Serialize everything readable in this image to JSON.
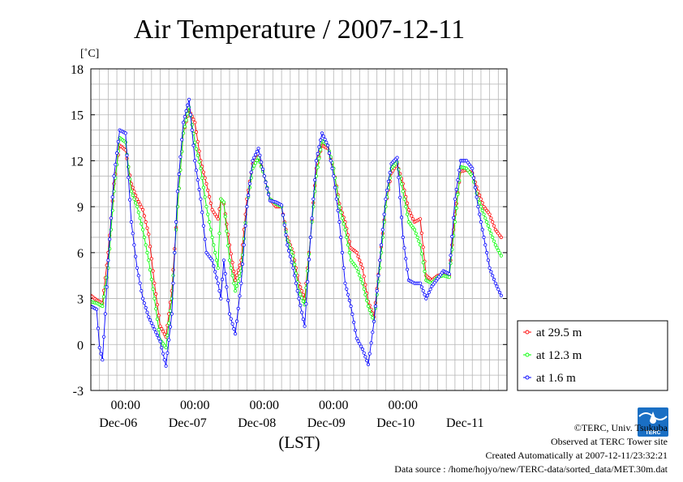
{
  "chart_data": {
    "type": "line",
    "title": "Air Temperature / 2007-12-11",
    "ylabel": "[˚C]",
    "xlabel": "(LST)",
    "ylim": [
      -3,
      18
    ],
    "yticks": [
      -3,
      0,
      3,
      6,
      9,
      12,
      15,
      18
    ],
    "xlim": [
      0,
      144
    ],
    "x_unit": "hours from 2007-12-05 12:00 LST",
    "x_time_ticks": [
      {
        "x": 12,
        "label": "00:00"
      },
      {
        "x": 36,
        "label": "00:00"
      },
      {
        "x": 60,
        "label": "00:00"
      },
      {
        "x": 84,
        "label": "00:00"
      },
      {
        "x": 108,
        "label": "00:00"
      }
    ],
    "x_date_labels": [
      {
        "x": 12,
        "label": "Dec-06"
      },
      {
        "x": 36,
        "label": "Dec-07"
      },
      {
        "x": 60,
        "label": "Dec-08"
      },
      {
        "x": 84,
        "label": "Dec-09"
      },
      {
        "x": 108,
        "label": "Dec-10"
      },
      {
        "x": 132,
        "label": "Dec-11"
      }
    ],
    "grid": true,
    "legend_position": "right",
    "series": [
      {
        "name": "at 29.5 m",
        "color": "#ff0000",
        "points": [
          [
            0,
            3.2
          ],
          [
            2,
            2.9
          ],
          [
            4,
            2.7
          ],
          [
            6,
            6.0
          ],
          [
            8,
            10.5
          ],
          [
            10,
            13.0
          ],
          [
            12,
            12.7
          ],
          [
            14,
            10.5
          ],
          [
            16,
            9.5
          ],
          [
            18,
            8.8
          ],
          [
            20,
            7.2
          ],
          [
            22,
            4.0
          ],
          [
            24,
            1.2
          ],
          [
            26,
            0.5
          ],
          [
            28,
            3.5
          ],
          [
            30,
            9.0
          ],
          [
            32,
            13.8
          ],
          [
            34,
            15.3
          ],
          [
            36,
            14.5
          ],
          [
            38,
            12.0
          ],
          [
            40,
            10.5
          ],
          [
            42,
            8.8
          ],
          [
            44,
            8.2
          ],
          [
            45,
            9.5
          ],
          [
            46,
            9.2
          ],
          [
            48,
            6.5
          ],
          [
            50,
            4.2
          ],
          [
            52,
            5.5
          ],
          [
            54,
            9.5
          ],
          [
            56,
            11.8
          ],
          [
            58,
            12.3
          ],
          [
            60,
            11.0
          ],
          [
            62,
            9.5
          ],
          [
            64,
            9.0
          ],
          [
            66,
            9.0
          ],
          [
            68,
            7.0
          ],
          [
            70,
            6.0
          ],
          [
            72,
            4.0
          ],
          [
            74,
            3.0
          ],
          [
            76,
            7.0
          ],
          [
            78,
            11.5
          ],
          [
            80,
            13.0
          ],
          [
            82,
            12.8
          ],
          [
            84,
            11.5
          ],
          [
            86,
            9.2
          ],
          [
            88,
            8.0
          ],
          [
            90,
            6.3
          ],
          [
            92,
            6.0
          ],
          [
            94,
            5.0
          ],
          [
            96,
            2.8
          ],
          [
            98,
            1.8
          ],
          [
            100,
            5.5
          ],
          [
            102,
            9.0
          ],
          [
            104,
            11.2
          ],
          [
            106,
            11.8
          ],
          [
            108,
            10.5
          ],
          [
            110,
            8.8
          ],
          [
            112,
            8.0
          ],
          [
            114,
            8.2
          ],
          [
            116,
            4.5
          ],
          [
            118,
            4.2
          ],
          [
            120,
            4.5
          ],
          [
            122,
            4.6
          ],
          [
            124,
            4.5
          ],
          [
            126,
            8.5
          ],
          [
            128,
            11.3
          ],
          [
            130,
            11.4
          ],
          [
            132,
            11.2
          ],
          [
            134,
            10.0
          ],
          [
            136,
            9.0
          ],
          [
            138,
            8.5
          ],
          [
            140,
            7.5
          ],
          [
            142,
            7.0
          ]
        ]
      },
      {
        "name": "at 12.3 m",
        "color": "#00ff00",
        "points": [
          [
            0,
            2.8
          ],
          [
            2,
            2.7
          ],
          [
            4,
            2.5
          ],
          [
            6,
            5.0
          ],
          [
            8,
            10.0
          ],
          [
            10,
            13.5
          ],
          [
            12,
            13.2
          ],
          [
            14,
            10.0
          ],
          [
            16,
            9.0
          ],
          [
            18,
            7.5
          ],
          [
            20,
            5.5
          ],
          [
            22,
            3.0
          ],
          [
            24,
            0.3
          ],
          [
            26,
            -0.2
          ],
          [
            28,
            3.0
          ],
          [
            30,
            9.0
          ],
          [
            32,
            13.8
          ],
          [
            34,
            15.5
          ],
          [
            36,
            13.2
          ],
          [
            38,
            11.5
          ],
          [
            40,
            9.0
          ],
          [
            42,
            7.0
          ],
          [
            44,
            5.0
          ],
          [
            45,
            9.5
          ],
          [
            46,
            9.3
          ],
          [
            48,
            5.5
          ],
          [
            50,
            3.5
          ],
          [
            52,
            4.8
          ],
          [
            54,
            9.0
          ],
          [
            56,
            11.5
          ],
          [
            58,
            12.2
          ],
          [
            60,
            11.0
          ],
          [
            62,
            9.5
          ],
          [
            64,
            9.2
          ],
          [
            66,
            9.0
          ],
          [
            68,
            6.8
          ],
          [
            70,
            5.8
          ],
          [
            72,
            3.5
          ],
          [
            74,
            2.6
          ],
          [
            76,
            7.0
          ],
          [
            78,
            11.0
          ],
          [
            80,
            13.3
          ],
          [
            82,
            13.0
          ],
          [
            84,
            11.5
          ],
          [
            86,
            9.0
          ],
          [
            88,
            7.5
          ],
          [
            90,
            5.5
          ],
          [
            92,
            5.0
          ],
          [
            94,
            4.0
          ],
          [
            96,
            2.5
          ],
          [
            98,
            1.5
          ],
          [
            100,
            5.0
          ],
          [
            102,
            9.0
          ],
          [
            104,
            11.5
          ],
          [
            106,
            11.9
          ],
          [
            108,
            10.0
          ],
          [
            110,
            8.0
          ],
          [
            112,
            7.5
          ],
          [
            114,
            6.5
          ],
          [
            116,
            4.2
          ],
          [
            118,
            4.0
          ],
          [
            120,
            4.4
          ],
          [
            122,
            4.5
          ],
          [
            124,
            4.4
          ],
          [
            126,
            8.0
          ],
          [
            128,
            11.6
          ],
          [
            130,
            11.5
          ],
          [
            132,
            11.0
          ],
          [
            134,
            9.5
          ],
          [
            136,
            8.5
          ],
          [
            138,
            7.5
          ],
          [
            140,
            6.5
          ],
          [
            142,
            5.8
          ]
        ]
      },
      {
        "name": "at 1.6 m",
        "color": "#0000ff",
        "points": [
          [
            0,
            2.5
          ],
          [
            2,
            2.3
          ],
          [
            3,
            -0.2
          ],
          [
            4,
            -1.0
          ],
          [
            5,
            2.0
          ],
          [
            6,
            5.5
          ],
          [
            8,
            11.0
          ],
          [
            10,
            14.0
          ],
          [
            12,
            13.8
          ],
          [
            14,
            8.0
          ],
          [
            16,
            5.0
          ],
          [
            18,
            3.0
          ],
          [
            20,
            1.8
          ],
          [
            22,
            1.0
          ],
          [
            24,
            0.2
          ],
          [
            26,
            -1.4
          ],
          [
            28,
            2.0
          ],
          [
            30,
            10.0
          ],
          [
            32,
            14.5
          ],
          [
            34,
            16.0
          ],
          [
            36,
            12.0
          ],
          [
            38,
            9.5
          ],
          [
            40,
            6.0
          ],
          [
            42,
            5.5
          ],
          [
            44,
            4.0
          ],
          [
            45,
            3.0
          ],
          [
            46,
            5.5
          ],
          [
            48,
            2.0
          ],
          [
            50,
            0.7
          ],
          [
            52,
            4.0
          ],
          [
            54,
            9.0
          ],
          [
            56,
            12.0
          ],
          [
            58,
            12.8
          ],
          [
            60,
            11.0
          ],
          [
            62,
            9.4
          ],
          [
            64,
            9.3
          ],
          [
            66,
            9.1
          ],
          [
            68,
            6.5
          ],
          [
            70,
            5.0
          ],
          [
            72,
            3.0
          ],
          [
            74,
            1.2
          ],
          [
            76,
            7.0
          ],
          [
            78,
            12.0
          ],
          [
            80,
            13.8
          ],
          [
            82,
            13.0
          ],
          [
            84,
            11.0
          ],
          [
            86,
            8.0
          ],
          [
            88,
            4.0
          ],
          [
            90,
            2.5
          ],
          [
            92,
            0.4
          ],
          [
            94,
            -0.3
          ],
          [
            96,
            -1.3
          ],
          [
            98,
            1.5
          ],
          [
            100,
            5.5
          ],
          [
            102,
            9.5
          ],
          [
            104,
            11.8
          ],
          [
            106,
            12.2
          ],
          [
            108,
            7.0
          ],
          [
            110,
            4.2
          ],
          [
            112,
            4.0
          ],
          [
            114,
            4.0
          ],
          [
            116,
            3.0
          ],
          [
            118,
            3.8
          ],
          [
            120,
            4.3
          ],
          [
            122,
            4.8
          ],
          [
            124,
            4.6
          ],
          [
            126,
            9.5
          ],
          [
            128,
            12.0
          ],
          [
            130,
            12.0
          ],
          [
            132,
            11.5
          ],
          [
            134,
            9.0
          ],
          [
            136,
            7.0
          ],
          [
            138,
            5.0
          ],
          [
            140,
            4.0
          ],
          [
            142,
            3.2
          ]
        ]
      }
    ]
  },
  "footer": {
    "copyright": "©TERC, Univ. Tsukuba",
    "observed": "Observed at TERC Tower site",
    "created": "Created Automatically at 2007-12-11/23:32:21",
    "source": "Data source : /home/hojyo/new/TERC-data/sorted_data/MET.30m.dat"
  },
  "logo": {
    "text": "TERC"
  }
}
